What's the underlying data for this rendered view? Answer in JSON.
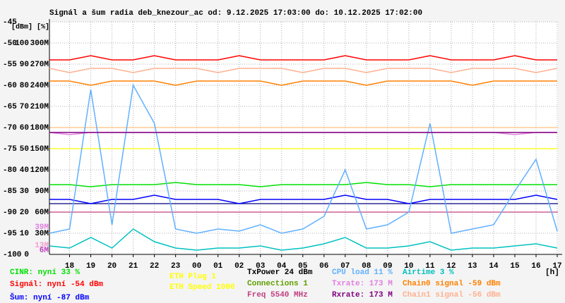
{
  "chart_data": {
    "type": "line",
    "title": "Signál a šum radia deb_knezour_ac od: 9.12.2025 17:03:00 do: 10.12.2025 17:02:00",
    "y_label": "[dBm]",
    "y2_label": "[%]",
    "x_label": "[h]",
    "x": [
      0.05,
      1,
      2,
      3,
      4,
      5,
      6,
      7,
      8,
      9,
      10,
      11,
      12,
      13,
      14,
      15,
      16,
      17,
      18,
      19,
      20,
      21,
      22,
      23,
      24
    ],
    "xlim": [
      0.05,
      24.033
    ],
    "xticks": [
      {
        "value": 1,
        "label": "18"
      },
      {
        "value": 2,
        "label": "19"
      },
      {
        "value": 3,
        "label": "20"
      },
      {
        "value": 4,
        "label": "21"
      },
      {
        "value": 5,
        "label": "22"
      },
      {
        "value": 6,
        "label": "23"
      },
      {
        "value": 7,
        "label": "00"
      },
      {
        "value": 8,
        "label": "01"
      },
      {
        "value": 9,
        "label": "02"
      },
      {
        "value": 10,
        "label": "03"
      },
      {
        "value": 11,
        "label": "04"
      },
      {
        "value": 12,
        "label": "05"
      },
      {
        "value": 13,
        "label": "06"
      },
      {
        "value": 14,
        "label": "07"
      },
      {
        "value": 15,
        "label": "08"
      },
      {
        "value": 16,
        "label": "09"
      },
      {
        "value": 17,
        "label": "10"
      },
      {
        "value": 18,
        "label": "11"
      },
      {
        "value": 19,
        "label": "12"
      },
      {
        "value": 20,
        "label": "13"
      },
      {
        "value": 21,
        "label": "14"
      },
      {
        "value": 22,
        "label": "15"
      },
      {
        "value": 23,
        "label": "16"
      },
      {
        "value": 24,
        "label": "17"
      }
    ],
    "ylim": [
      -100,
      -45
    ],
    "yticks": [
      -45,
      -50,
      -55,
      -60,
      -65,
      -70,
      -75,
      -80,
      -85,
      -90,
      -95,
      -100
    ],
    "y2lim": [
      0,
      110
    ],
    "y2ticks": [
      100,
      90,
      80,
      70,
      60,
      50,
      40,
      30,
      20,
      10,
      0
    ],
    "y3lim": [
      0,
      330
    ],
    "y3ticks": [
      {
        "value": 300,
        "label": "300M"
      },
      {
        "value": 270,
        "label": "270M"
      },
      {
        "value": 240,
        "label": "240M"
      },
      {
        "value": 210,
        "label": "210M"
      },
      {
        "value": 180,
        "label": "180M"
      },
      {
        "value": 150,
        "label": "150M"
      },
      {
        "value": 120,
        "label": "120M"
      },
      {
        "value": 90,
        "label": "90M"
      },
      {
        "value": 60,
        "label": "60M"
      },
      {
        "value": 30,
        "label": "30M"
      }
    ],
    "rate_markers": [
      {
        "value": 39,
        "label": "39M",
        "color": "#e080e0"
      },
      {
        "value": 13,
        "label": "13M",
        "color": "#f0a0d0"
      },
      {
        "value": 6,
        "label": "6M",
        "color": "#c040c0"
      }
    ],
    "grid": true,
    "reference_lines": [
      {
        "value": -70,
        "color": "#ffc080"
      },
      {
        "value": -75,
        "color": "#ffff00"
      },
      {
        "value": -88,
        "color": "#000080"
      },
      {
        "value": -90,
        "color": "#c04080"
      }
    ],
    "series": [
      {
        "name": "Signál: nyní -54 dBm",
        "color": "#ff0000",
        "axis": "y",
        "values": [
          -54,
          -54,
          -53,
          -54,
          -54,
          -53,
          -54,
          -54,
          -54,
          -53,
          -54,
          -54,
          -54,
          -54,
          -53,
          -54,
          -54,
          -54,
          -53,
          -54,
          -54,
          -54,
          -53,
          -54,
          -54
        ]
      },
      {
        "name": "Chain1 signal -56 dBm",
        "color": "#ffb090",
        "axis": "y",
        "values": [
          -56,
          -57,
          -56,
          -56,
          -57,
          -56,
          -56,
          -56,
          -57,
          -56,
          -56,
          -56,
          -57,
          -56,
          -56,
          -57,
          -56,
          -56,
          -56,
          -57,
          -56,
          -56,
          -56,
          -57,
          -56
        ]
      },
      {
        "name": "Chain0 signal -59 dBm",
        "color": "#ff8000",
        "axis": "y",
        "values": [
          -59,
          -59,
          -60,
          -59,
          -59,
          -59,
          -60,
          -59,
          -59,
          -59,
          -59,
          -60,
          -59,
          -59,
          -59,
          -60,
          -59,
          -59,
          -59,
          -59,
          -60,
          -59,
          -59,
          -59,
          -59
        ]
      },
      {
        "name": "Šum: nyní -87 dBm",
        "color": "#0000ff",
        "axis": "y",
        "values": [
          -87,
          -87,
          -88,
          -87,
          -87,
          -86,
          -87,
          -87,
          -87,
          -88,
          -87,
          -87,
          -87,
          -87,
          -86,
          -87,
          -87,
          -88,
          -87,
          -87,
          -87,
          -87,
          -87,
          -86,
          -87
        ]
      },
      {
        "name": "CINR: nyní 33 %",
        "color": "#00e000",
        "axis": "y2",
        "values": [
          33,
          33,
          32,
          33,
          33,
          33,
          34,
          33,
          33,
          33,
          32,
          33,
          33,
          33,
          33,
          34,
          33,
          33,
          32,
          33,
          33,
          33,
          33,
          33,
          33
        ]
      },
      {
        "name": "CPU load 11 %",
        "color": "#60b0ff",
        "axis": "y2",
        "values": [
          10,
          12,
          78,
          14,
          80,
          62,
          12,
          10,
          12,
          11,
          14,
          10,
          12,
          18,
          40,
          12,
          14,
          20,
          62,
          10,
          12,
          14,
          30,
          45,
          11
        ]
      },
      {
        "name": "Airtime 3 %",
        "color": "#00c0c0",
        "axis": "y2",
        "values": [
          4,
          3,
          8,
          3,
          12,
          6,
          3,
          2,
          3,
          3,
          4,
          2,
          3,
          5,
          8,
          3,
          3,
          4,
          6,
          2,
          3,
          3,
          4,
          5,
          3
        ]
      },
      {
        "name": "Txrate: 173 M",
        "color": "#e080e0",
        "axis": "y3",
        "values": [
          173,
          170,
          173,
          173,
          173,
          173,
          173,
          173,
          173,
          173,
          173,
          173,
          173,
          173,
          173,
          173,
          173,
          173,
          173,
          173,
          173,
          173,
          170,
          173,
          173
        ]
      },
      {
        "name": "Rxrate: 173 M",
        "color": "#800080",
        "axis": "y3",
        "values": [
          173,
          173,
          173,
          173,
          173,
          173,
          173,
          173,
          173,
          173,
          173,
          173,
          173,
          173,
          173,
          173,
          173,
          173,
          173,
          173,
          173,
          173,
          173,
          173,
          173
        ]
      }
    ],
    "info_items": [
      {
        "text": "ETH Plug 1",
        "color": "#ffff00"
      },
      {
        "text": "ETH Speed 1000",
        "color": "#ffff00"
      },
      {
        "text": "TxPower 24 dBm",
        "color": "#000000"
      },
      {
        "text": "Connections 1",
        "color": "#60a000"
      },
      {
        "text": "Freq 5540 MHz",
        "color": "#c04080"
      }
    ]
  }
}
